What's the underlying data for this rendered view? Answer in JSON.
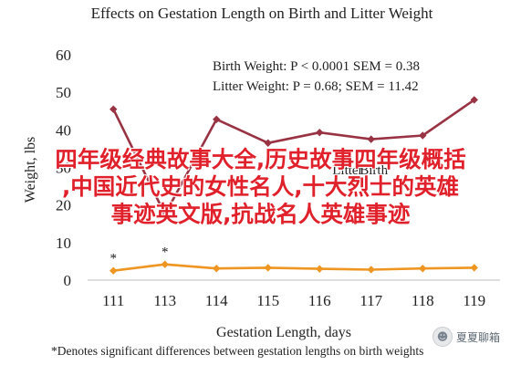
{
  "chart_data": {
    "type": "line",
    "title": "Effects on Gestation Length on Birth and Litter Weight",
    "xlabel": "Gestation Length, days",
    "ylabel": "Weight, lbs",
    "footnote": "*Denotes significant differences between gestation lengths on birth weights",
    "categories": [
      "111",
      "113",
      "114",
      "115",
      "116",
      "117",
      "118",
      "119"
    ],
    "ylim": [
      0,
      60
    ],
    "yticks": [
      "0",
      "10",
      "20",
      "30",
      "40",
      "50",
      "60"
    ],
    "series": [
      {
        "name": "Litter",
        "color": "#993344",
        "values": [
          45.5,
          17.5,
          42.8,
          36.5,
          39.3,
          37.5,
          38.5,
          48
        ]
      },
      {
        "name": "Birth",
        "color": "#ee9522",
        "values": [
          2.5,
          4.2,
          3.1,
          3.3,
          3.0,
          2.8,
          3.1,
          3.3
        ]
      }
    ],
    "significance_markers": [
      {
        "category": "111",
        "label": "*"
      },
      {
        "category": "113",
        "label": "*"
      }
    ],
    "annotations": [
      "Birth Weight: P < 0.0001 SEM = 0.38",
      "Litter Weight: P = 0.68; SEM = 11.42"
    ],
    "grid": false
  },
  "overlay_text": [
    "四年级经典故事大全,历史故事四年级概括",
    ",中国近代史的女性名人,十大烈士的英雄",
    "事迹英文版,抗战名人英雄事迹"
  ],
  "watermark": {
    "text": "夏夏聊箱",
    "icon": "chat-bubble-icon"
  }
}
